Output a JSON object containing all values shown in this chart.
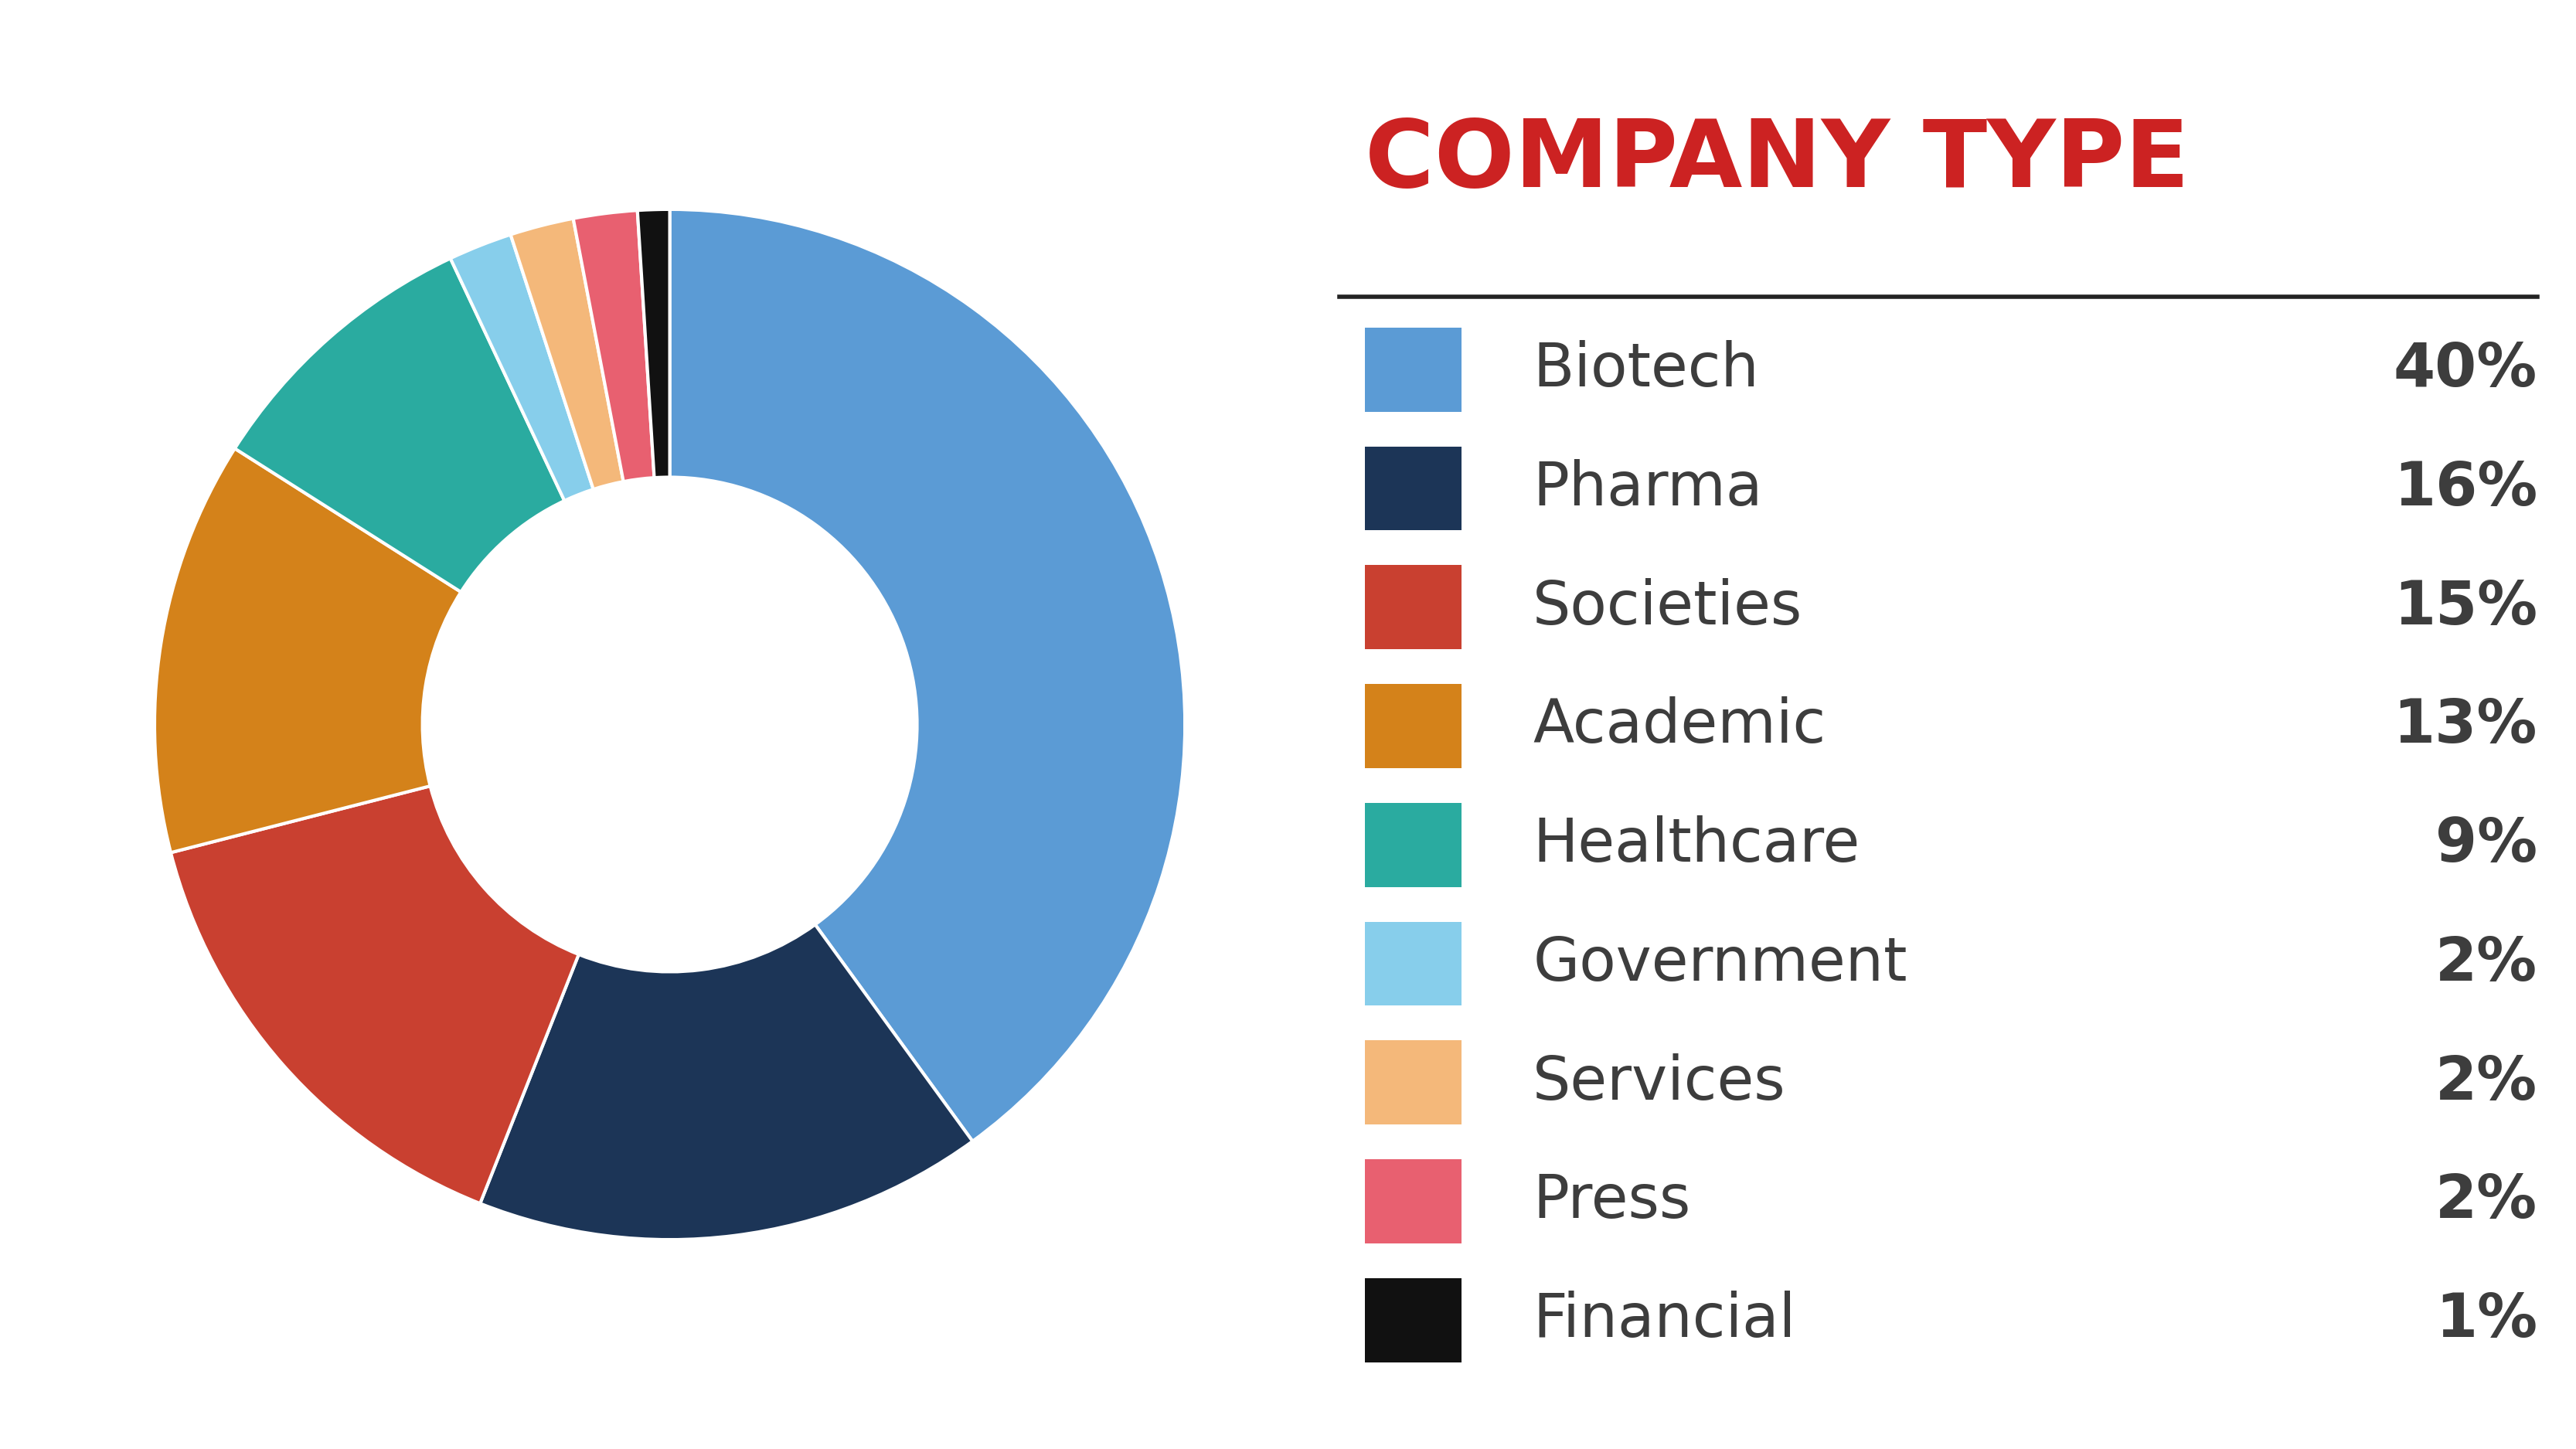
{
  "title": "COMPANY TYPE",
  "title_color": "#CC2222",
  "background_color": "#FFFFFF",
  "categories": [
    "Biotech",
    "Pharma",
    "Societies",
    "Academic",
    "Healthcare",
    "Government",
    "Services",
    "Press",
    "Financial"
  ],
  "values": [
    40,
    16,
    15,
    13,
    9,
    2,
    2,
    2,
    1
  ],
  "colors": [
    "#5B9BD5",
    "#1C3557",
    "#C94030",
    "#D4821A",
    "#2AABA0",
    "#87CEEB",
    "#F4B87A",
    "#E86070",
    "#111111"
  ],
  "legend_labels": [
    "Biotech",
    "Pharma",
    "Societies",
    "Academic",
    "Healthcare",
    "Government",
    "Services",
    "Press",
    "Financial"
  ],
  "legend_percentages": [
    "40%",
    "16%",
    "15%",
    "13%",
    "9%",
    "2%",
    "2%",
    "2%",
    "1%"
  ],
  "text_color": "#3D3D3D",
  "line_color": "#222222"
}
